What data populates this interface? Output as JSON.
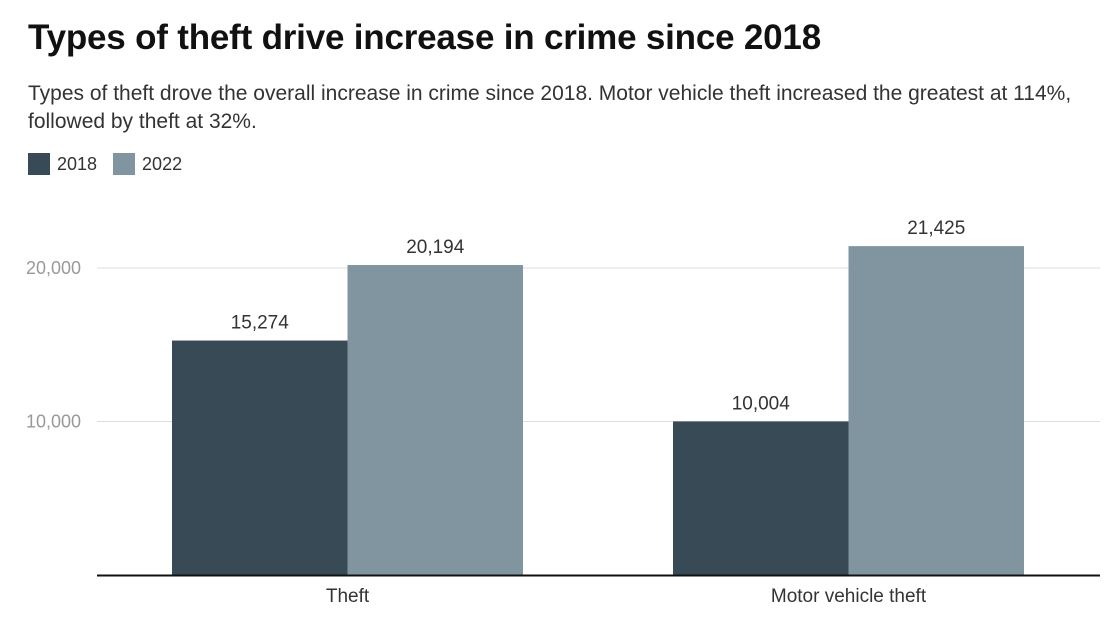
{
  "header": {
    "title": "Types of theft drive increase in crime since 2018",
    "subtitle": "Types of theft drove the overall increase in crime since 2018. Motor vehicle theft increased the greatest at 114%, followed by theft at 32%."
  },
  "colors": {
    "series_2018": "#394a57",
    "series_2022": "#8195a1",
    "gridline": "#dddddd",
    "axis": "#111111"
  },
  "chart_data": {
    "type": "bar",
    "title": "Types of theft drive increase in crime since 2018",
    "subtitle": "Types of theft drove the overall increase in crime since 2018. Motor vehicle theft increased the greatest at 114%, followed by theft at 32%.",
    "categories": [
      "Theft",
      "Motor vehicle theft"
    ],
    "series": [
      {
        "name": "2018",
        "values": [
          15274,
          10004
        ],
        "labels": [
          "15,274",
          "10,004"
        ]
      },
      {
        "name": "2022",
        "values": [
          20194,
          21425
        ],
        "labels": [
          "20,194",
          "21,425"
        ]
      }
    ],
    "ylim": [
      0,
      23000
    ],
    "yticks": [
      10000,
      20000
    ],
    "ytick_labels": [
      "10,000",
      "20,000"
    ],
    "xlabel": "",
    "ylabel": "",
    "grid": true,
    "legend": "top-left"
  }
}
